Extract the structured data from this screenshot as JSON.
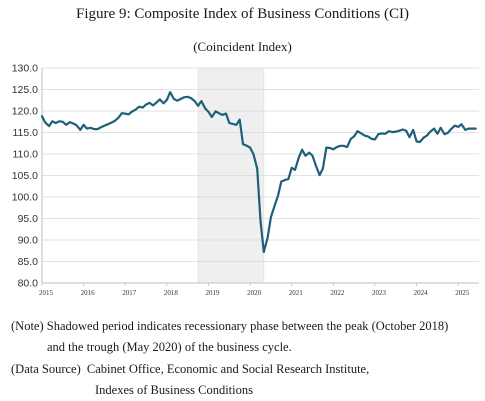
{
  "title": "Figure 9: Composite Index of Business Conditions (CI)",
  "subtitle": "(Coincident Index)",
  "notes": {
    "note_label": "(Note)",
    "note_line1": "Shadowed period indicates recessionary phase between the peak (October 2018)",
    "note_line2": "and the trough (May 2020) of the business cycle.",
    "source_label": "(Data Source)",
    "source_line1": "Cabinet Office, Economic and Social Research Institute,",
    "source_line2": "Indexes of Business Conditions"
  },
  "chart_data": {
    "type": "line",
    "title": "Figure 9: Composite Index of Business Conditions (CI)",
    "subtitle": "(Coincident Index)",
    "xlabel": "",
    "ylabel": "",
    "ylim": [
      80,
      130
    ],
    "yticks": [
      "80.0",
      "85.0",
      "90.0",
      "95.0",
      "100.0",
      "105.0",
      "110.0",
      "115.0",
      "120.0",
      "125.0",
      "130.0"
    ],
    "xticks": [
      "2015",
      "2016",
      "2017",
      "2018",
      "2019",
      "2020",
      "2021",
      "2022",
      "2023",
      "2024",
      "2025"
    ],
    "xlim": [
      2015.0,
      2025.5
    ],
    "grid": "horizontal",
    "line_color": "#1f5f7a",
    "shade_color": "#efefef",
    "recession": {
      "start": 2018.75,
      "end": 2020.33
    },
    "series": [
      {
        "x": [
          2015.0,
          2015.08,
          2015.17,
          2015.25,
          2015.33,
          2015.42,
          2015.5,
          2015.58,
          2015.67,
          2015.75,
          2015.83,
          2015.92,
          2016.0,
          2016.08,
          2016.17,
          2016.25,
          2016.33,
          2016.42,
          2016.5,
          2016.58,
          2016.67,
          2016.75,
          2016.83,
          2016.92,
          2017.0,
          2017.08,
          2017.17,
          2017.25,
          2017.33,
          2017.42,
          2017.5,
          2017.58,
          2017.67,
          2017.75,
          2017.83,
          2017.92,
          2018.0,
          2018.08,
          2018.17,
          2018.25,
          2018.33,
          2018.42,
          2018.5,
          2018.58,
          2018.67,
          2018.75,
          2018.83,
          2018.92,
          2019.0,
          2019.08,
          2019.17,
          2019.25,
          2019.33,
          2019.42,
          2019.5,
          2019.58,
          2019.67,
          2019.75,
          2019.83,
          2019.92,
          2020.0,
          2020.08,
          2020.17,
          2020.25,
          2020.33,
          2020.42,
          2020.5,
          2020.58,
          2020.67,
          2020.75,
          2020.83,
          2020.92,
          2021.0,
          2021.08,
          2021.17,
          2021.25,
          2021.33,
          2021.42,
          2021.5,
          2021.58,
          2021.67,
          2021.75,
          2021.83,
          2021.92,
          2022.0,
          2022.08,
          2022.17,
          2022.25,
          2022.33,
          2022.42,
          2022.5,
          2022.58,
          2022.67,
          2022.75,
          2022.83,
          2022.92,
          2023.0,
          2023.08,
          2023.17,
          2023.25,
          2023.33,
          2023.42,
          2023.5,
          2023.58,
          2023.67,
          2023.75,
          2023.83,
          2023.92,
          2024.0,
          2024.08,
          2024.17,
          2024.25,
          2024.33,
          2024.42,
          2024.5,
          2024.58,
          2024.67,
          2024.75,
          2024.83,
          2024.92,
          2025.0,
          2025.08,
          2025.17,
          2025.25,
          2025.33,
          2025.42
        ],
        "values": [
          118.8,
          117.3,
          116.5,
          117.6,
          117.2,
          117.6,
          117.5,
          116.8,
          117.4,
          117.1,
          116.7,
          115.6,
          116.8,
          115.9,
          116.1,
          115.8,
          115.8,
          116.2,
          116.6,
          116.9,
          117.3,
          117.7,
          118.4,
          119.5,
          119.4,
          119.2,
          119.9,
          120.3,
          121.0,
          120.8,
          121.5,
          121.9,
          121.3,
          122.0,
          122.7,
          121.8,
          122.6,
          124.4,
          122.8,
          122.4,
          122.8,
          123.2,
          123.3,
          123.0,
          122.3,
          121.2,
          122.3,
          120.6,
          119.8,
          118.6,
          119.9,
          119.5,
          119.1,
          119.4,
          117.2,
          117.0,
          116.8,
          118.0,
          112.3,
          111.9,
          111.5,
          110.0,
          106.6,
          94.5,
          87.2,
          90.5,
          95.3,
          97.7,
          100.3,
          103.6,
          103.9,
          104.2,
          106.8,
          106.3,
          109.2,
          111.0,
          109.6,
          110.3,
          109.6,
          107.3,
          105.1,
          106.6,
          111.5,
          111.4,
          111.1,
          111.6,
          111.9,
          111.9,
          111.6,
          113.5,
          114.1,
          115.3,
          114.8,
          114.3,
          114.1,
          113.5,
          113.4,
          114.6,
          114.8,
          114.7,
          115.3,
          115.1,
          115.2,
          115.4,
          115.7,
          115.4,
          113.9,
          115.6,
          112.9,
          112.8,
          113.8,
          114.3,
          115.2,
          115.9,
          114.7,
          116.1,
          114.6,
          114.9,
          115.8,
          116.6,
          116.3,
          116.9,
          115.6,
          115.9,
          115.9,
          115.9
        ]
      }
    ]
  }
}
